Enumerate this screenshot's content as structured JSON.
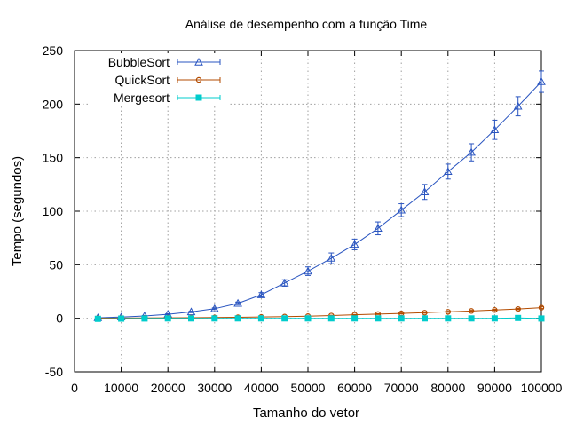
{
  "chart_data": {
    "type": "line",
    "title": "Análise de desempenho com a função Time",
    "xlabel": "Tamanho do vetor",
    "ylabel": "Tempo (segundos)",
    "xlim": [
      0,
      100000
    ],
    "ylim": [
      -50,
      250
    ],
    "x_ticks": [
      0,
      10000,
      20000,
      30000,
      40000,
      50000,
      60000,
      70000,
      80000,
      90000,
      100000
    ],
    "y_ticks": [
      -50,
      0,
      50,
      100,
      150,
      200,
      250
    ],
    "grid": true,
    "legend_position": "top-left",
    "error_bars": true,
    "x": [
      5000,
      10000,
      15000,
      20000,
      25000,
      30000,
      35000,
      40000,
      45000,
      50000,
      55000,
      60000,
      65000,
      70000,
      75000,
      80000,
      85000,
      90000,
      95000,
      100000
    ],
    "series": [
      {
        "name": "BubbleSort",
        "color": "#2a55c0",
        "marker": "triangle",
        "values": [
          0.5,
          1.2,
          2.2,
          3.8,
          6.0,
          9.0,
          14.0,
          22.0,
          33.0,
          44.0,
          56.0,
          69.0,
          84.0,
          101.0,
          118.0,
          137.0,
          155.0,
          176.0,
          198.0,
          221.0
        ],
        "errors": [
          0.5,
          0.5,
          0.5,
          0.5,
          0.7,
          0.8,
          1.2,
          2.0,
          3.0,
          4.0,
          5.0,
          5.0,
          6.0,
          6.0,
          7.0,
          7.0,
          8.0,
          9.0,
          9.0,
          10.0
        ]
      },
      {
        "name": "QuickSort",
        "color": "#b34b00",
        "marker": "circle",
        "values": [
          0.1,
          0.2,
          0.3,
          0.5,
          0.6,
          0.8,
          1.0,
          1.3,
          1.6,
          2.0,
          2.6,
          3.3,
          4.0,
          4.6,
          5.3,
          6.1,
          6.9,
          7.8,
          8.7,
          10.0
        ],
        "errors": [
          0.1,
          0.1,
          0.1,
          0.1,
          0.1,
          0.1,
          0.1,
          0.2,
          0.2,
          0.3,
          0.3,
          0.3,
          0.4,
          0.4,
          0.5,
          0.5,
          0.6,
          0.6,
          0.7,
          0.8
        ]
      },
      {
        "name": "Mergesort",
        "color": "#00cccc",
        "marker": "square",
        "values": [
          -0.5,
          -0.3,
          -0.2,
          -0.1,
          -0.1,
          -0.1,
          -0.1,
          -0.1,
          -0.1,
          -0.1,
          -0.1,
          -0.1,
          -0.1,
          -0.1,
          -0.1,
          -0.1,
          -0.1,
          -0.1,
          0.3,
          -0.2
        ],
        "errors": [
          0.5,
          0.4,
          0.3,
          0.2,
          0.2,
          0.2,
          0.2,
          0.2,
          0.2,
          0.2,
          0.2,
          0.2,
          0.2,
          0.2,
          0.2,
          0.2,
          0.2,
          0.2,
          0.4,
          0.3
        ]
      }
    ]
  }
}
